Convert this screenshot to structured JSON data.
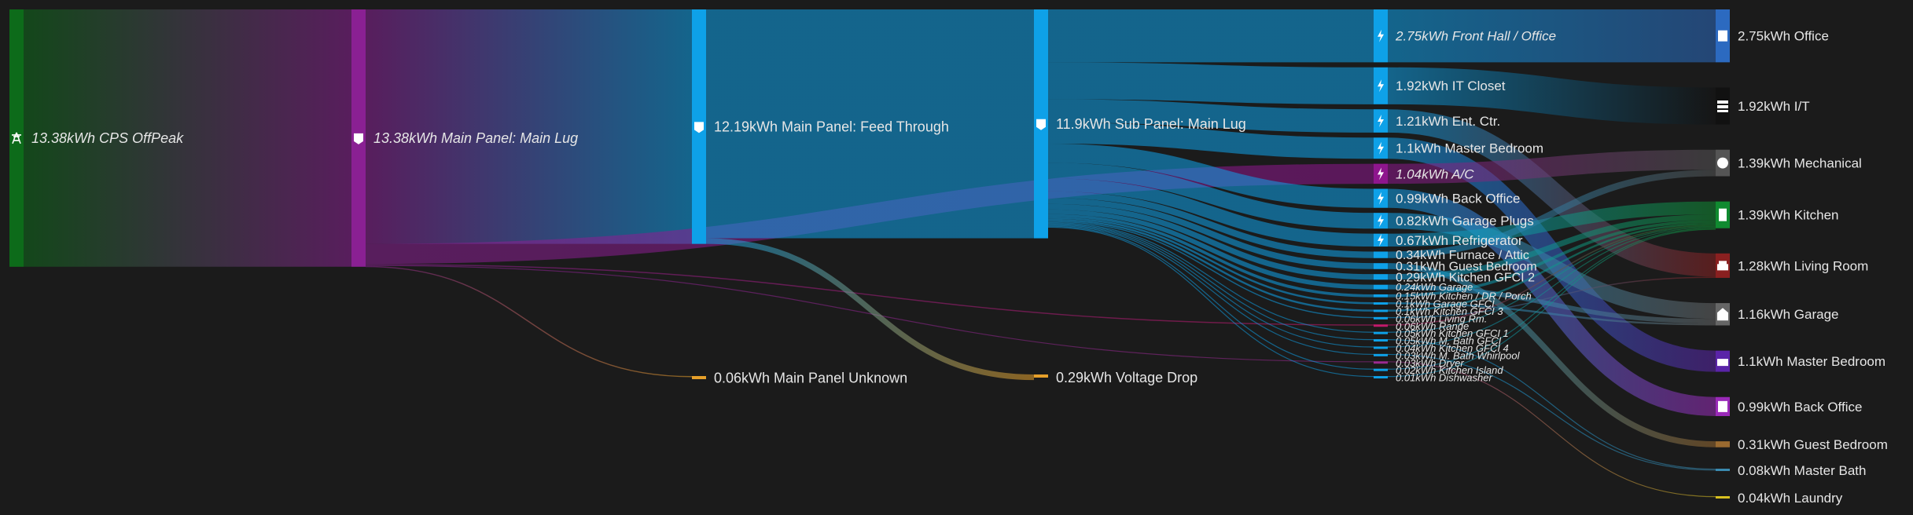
{
  "colors": {
    "background": "#1b1b1b",
    "grid": "#0a4f2a",
    "main_lug": "#8a2093",
    "panel": "#0ea1e8",
    "ac": "#8e168d",
    "unknown": "#e6a02a",
    "room_blue": "#2c6ac0"
  },
  "diagram": {
    "title": "",
    "nodes": [
      {
        "id": "grid",
        "label": "13.38kWh CPS OffPeak",
        "icon": "power-tower-icon",
        "color": "#0d6b1a",
        "italic": true
      },
      {
        "id": "main_lug",
        "label": "13.38kWh Main Panel: Main Lug",
        "icon": "lightning-badge-icon",
        "color": "#8a2093",
        "italic": true
      },
      {
        "id": "feed",
        "label": "12.19kWh Main Panel: Feed Through",
        "icon": "lightning-badge-icon",
        "color": "#0ea1e8",
        "italic": false
      },
      {
        "id": "unknown_main",
        "label": "0.06kWh Main Panel Unknown",
        "icon": "",
        "color": "#e6a02a",
        "italic": false
      },
      {
        "id": "sub",
        "label": "11.9kWh Sub Panel: Main Lug",
        "icon": "lightning-badge-icon",
        "color": "#0ea1e8",
        "italic": false
      },
      {
        "id": "vdrop",
        "label": "0.29kWh Voltage Drop",
        "icon": "",
        "color": "#e6a02a",
        "italic": false
      },
      {
        "id": "c_front",
        "label": "2.75kWh Front Hall / Office",
        "icon": "bolt-icon",
        "color": "#0ea1e8",
        "italic": true
      },
      {
        "id": "c_it",
        "label": "1.92kWh IT Closet",
        "icon": "bolt-icon",
        "color": "#0ea1e8",
        "italic": false
      },
      {
        "id": "c_ent",
        "label": "1.21kWh Ent. Ctr.",
        "icon": "bolt-icon",
        "color": "#0ea1e8",
        "italic": false
      },
      {
        "id": "c_mbed",
        "label": "1.1kWh Master Bedroom",
        "icon": "bolt-icon",
        "color": "#0ea1e8",
        "italic": false
      },
      {
        "id": "c_ac",
        "label": "1.04kWh A/C",
        "icon": "bolt-icon",
        "color": "#8e168d",
        "italic": true
      },
      {
        "id": "c_back",
        "label": "0.99kWh Back Office",
        "icon": "bolt-icon",
        "color": "#0ea1e8",
        "italic": false
      },
      {
        "id": "c_gplugs",
        "label": "0.82kWh Garage Plugs",
        "icon": "bolt-icon",
        "color": "#0ea1e8",
        "italic": false
      },
      {
        "id": "c_fridge",
        "label": "0.67kWh Refrigerator",
        "icon": "bolt-icon",
        "color": "#0ea1e8",
        "italic": false
      },
      {
        "id": "c_furnace",
        "label": "0.34kWh Furnace / Attic",
        "icon": "bolt-icon",
        "color": "#0ea1e8",
        "italic": false
      },
      {
        "id": "c_guest",
        "label": "0.31kWh Guest Bedroom",
        "icon": "bolt-icon",
        "color": "#0ea1e8",
        "italic": false
      },
      {
        "id": "c_kg2",
        "label": "0.29kWh Kitchen GFCI 2",
        "icon": "",
        "color": "#0ea1e8",
        "italic": false
      },
      {
        "id": "c_garage",
        "label": "0.24kWh Garage",
        "icon": "",
        "color": "#0ea1e8",
        "italic": true
      },
      {
        "id": "c_kdr",
        "label": "0.15kWh Kitchen / DR / Porch",
        "icon": "",
        "color": "#0ea1e8",
        "italic": true
      },
      {
        "id": "c_ggfci",
        "label": "0.1kWh Garage GFCI",
        "icon": "",
        "color": "#0ea1e8",
        "italic": true
      },
      {
        "id": "c_kg3",
        "label": "0.1kWh Kitchen GFCI 3",
        "icon": "",
        "color": "#0ea1e8",
        "italic": true
      },
      {
        "id": "c_living",
        "label": "0.06kWh Living Rm.",
        "icon": "",
        "color": "#0ea1e8",
        "italic": true
      },
      {
        "id": "c_range",
        "label": "0.06kWh Range",
        "icon": "",
        "color": "#c01a6a",
        "italic": true
      },
      {
        "id": "c_kg1",
        "label": "0.05kWh Kitchen GFCI 1",
        "icon": "",
        "color": "#0ea1e8",
        "italic": true
      },
      {
        "id": "c_mbgfci",
        "label": "0.05kWh M. Bath GFCI",
        "icon": "",
        "color": "#0ea1e8",
        "italic": true
      },
      {
        "id": "c_kg4",
        "label": "0.04kWh Kitchen GFCI 4",
        "icon": "",
        "color": "#0ea1e8",
        "italic": true
      },
      {
        "id": "c_whirl",
        "label": "0.03kWh M. Bath Whirlpool",
        "icon": "",
        "color": "#0ea1e8",
        "italic": true
      },
      {
        "id": "c_dryer",
        "label": "0.03kWh Dryer",
        "icon": "",
        "color": "#9a2a90",
        "italic": true
      },
      {
        "id": "c_island",
        "label": "0.02kWh Kitchen Island",
        "icon": "",
        "color": "#0ea1e8",
        "italic": true
      },
      {
        "id": "c_dish",
        "label": "0.01kWh Dishwasher",
        "icon": "",
        "color": "#0ea1e8",
        "italic": true
      },
      {
        "id": "r_office",
        "label": "2.75kWh Office",
        "icon": "building-icon",
        "color": "#2c6ac0",
        "italic": false
      },
      {
        "id": "r_it",
        "label": "1.92kWh I/T",
        "icon": "server-icon",
        "color": "#111111",
        "italic": false
      },
      {
        "id": "r_mech",
        "label": "1.39kWh Mechanical",
        "icon": "fan-icon",
        "color": "#555555",
        "italic": false
      },
      {
        "id": "r_kitchen",
        "label": "1.39kWh Kitchen",
        "icon": "fridge-icon",
        "color": "#108a30",
        "italic": false
      },
      {
        "id": "r_living",
        "label": "1.28kWh Living Room",
        "icon": "sofa-icon",
        "color": "#8a2020",
        "italic": false
      },
      {
        "id": "r_garage",
        "label": "1.16kWh Garage",
        "icon": "garage-icon",
        "color": "#666666",
        "italic": false
      },
      {
        "id": "r_mbed",
        "label": "1.1kWh Master Bedroom",
        "icon": "bed-icon",
        "color": "#5a24a8",
        "italic": false
      },
      {
        "id": "r_back",
        "label": "0.99kWh Back Office",
        "icon": "building-icon",
        "color": "#9a2ab8",
        "italic": false
      },
      {
        "id": "r_guest",
        "label": "0.31kWh Guest Bedroom",
        "icon": "bed-icon",
        "color": "#9a6a30",
        "italic": false
      },
      {
        "id": "r_mbath",
        "label": "0.08kWh Master Bath",
        "icon": "",
        "color": "#3a8ab0",
        "italic": false
      },
      {
        "id": "r_laundry",
        "label": "0.04kWh Laundry",
        "icon": "",
        "color": "#d8c020",
        "italic": false
      }
    ],
    "links": [
      {
        "source": "grid",
        "target": "main_lug",
        "value": 13.38
      },
      {
        "source": "main_lug",
        "target": "feed",
        "value": 12.19
      },
      {
        "source": "main_lug",
        "target": "c_ac",
        "value": 1.04
      },
      {
        "source": "main_lug",
        "target": "unknown_main",
        "value": 0.06
      },
      {
        "source": "main_lug",
        "target": "c_range",
        "value": 0.06
      },
      {
        "source": "main_lug",
        "target": "c_dryer",
        "value": 0.03
      },
      {
        "source": "feed",
        "target": "sub",
        "value": 11.9
      },
      {
        "source": "feed",
        "target": "vdrop",
        "value": 0.29
      },
      {
        "source": "sub",
        "target": "c_front",
        "value": 2.75
      },
      {
        "source": "sub",
        "target": "c_it",
        "value": 1.92
      },
      {
        "source": "sub",
        "target": "c_ent",
        "value": 1.21
      },
      {
        "source": "sub",
        "target": "c_mbed",
        "value": 1.1
      },
      {
        "source": "sub",
        "target": "c_back",
        "value": 0.99
      },
      {
        "source": "sub",
        "target": "c_gplugs",
        "value": 0.82
      },
      {
        "source": "sub",
        "target": "c_fridge",
        "value": 0.67
      },
      {
        "source": "sub",
        "target": "c_furnace",
        "value": 0.34
      },
      {
        "source": "sub",
        "target": "c_guest",
        "value": 0.31
      },
      {
        "source": "sub",
        "target": "c_kg2",
        "value": 0.29
      },
      {
        "source": "sub",
        "target": "c_garage",
        "value": 0.24
      },
      {
        "source": "sub",
        "target": "c_kdr",
        "value": 0.15
      },
      {
        "source": "sub",
        "target": "c_ggfci",
        "value": 0.1
      },
      {
        "source": "sub",
        "target": "c_kg3",
        "value": 0.1
      },
      {
        "source": "sub",
        "target": "c_living",
        "value": 0.06
      },
      {
        "source": "sub",
        "target": "c_kg1",
        "value": 0.05
      },
      {
        "source": "sub",
        "target": "c_mbgfci",
        "value": 0.05
      },
      {
        "source": "sub",
        "target": "c_kg4",
        "value": 0.04
      },
      {
        "source": "sub",
        "target": "c_whirl",
        "value": 0.03
      },
      {
        "source": "sub",
        "target": "c_island",
        "value": 0.02
      },
      {
        "source": "sub",
        "target": "c_dish",
        "value": 0.01
      },
      {
        "source": "c_front",
        "target": "r_office",
        "value": 2.75
      },
      {
        "source": "c_it",
        "target": "r_it",
        "value": 1.92
      },
      {
        "source": "c_ent",
        "target": "r_living",
        "value": 1.21
      },
      {
        "source": "c_mbed",
        "target": "r_mbed",
        "value": 1.1
      },
      {
        "source": "c_ac",
        "target": "r_mech",
        "value": 1.04
      },
      {
        "source": "c_back",
        "target": "r_back",
        "value": 0.99
      },
      {
        "source": "c_gplugs",
        "target": "r_garage",
        "value": 0.82
      },
      {
        "source": "c_fridge",
        "target": "r_kitchen",
        "value": 0.67
      },
      {
        "source": "c_furnace",
        "target": "r_mech",
        "value": 0.34
      },
      {
        "source": "c_guest",
        "target": "r_guest",
        "value": 0.31
      },
      {
        "source": "c_kg2",
        "target": "r_kitchen",
        "value": 0.29
      },
      {
        "source": "c_garage",
        "target": "r_garage",
        "value": 0.24
      },
      {
        "source": "c_kdr",
        "target": "r_kitchen",
        "value": 0.15
      },
      {
        "source": "c_ggfci",
        "target": "r_garage",
        "value": 0.1
      },
      {
        "source": "c_kg3",
        "target": "r_kitchen",
        "value": 0.1
      },
      {
        "source": "c_living",
        "target": "r_living",
        "value": 0.06
      },
      {
        "source": "c_range",
        "target": "r_kitchen",
        "value": 0.06
      },
      {
        "source": "c_kg1",
        "target": "r_kitchen",
        "value": 0.05
      },
      {
        "source": "c_mbgfci",
        "target": "r_mbath",
        "value": 0.05
      },
      {
        "source": "c_kg4",
        "target": "r_kitchen",
        "value": 0.04
      },
      {
        "source": "c_whirl",
        "target": "r_mbath",
        "value": 0.03
      },
      {
        "source": "c_dryer",
        "target": "r_laundry",
        "value": 0.03
      },
      {
        "source": "c_island",
        "target": "r_kitchen",
        "value": 0.02
      },
      {
        "source": "c_dish",
        "target": "r_kitchen",
        "value": 0.01
      }
    ]
  }
}
